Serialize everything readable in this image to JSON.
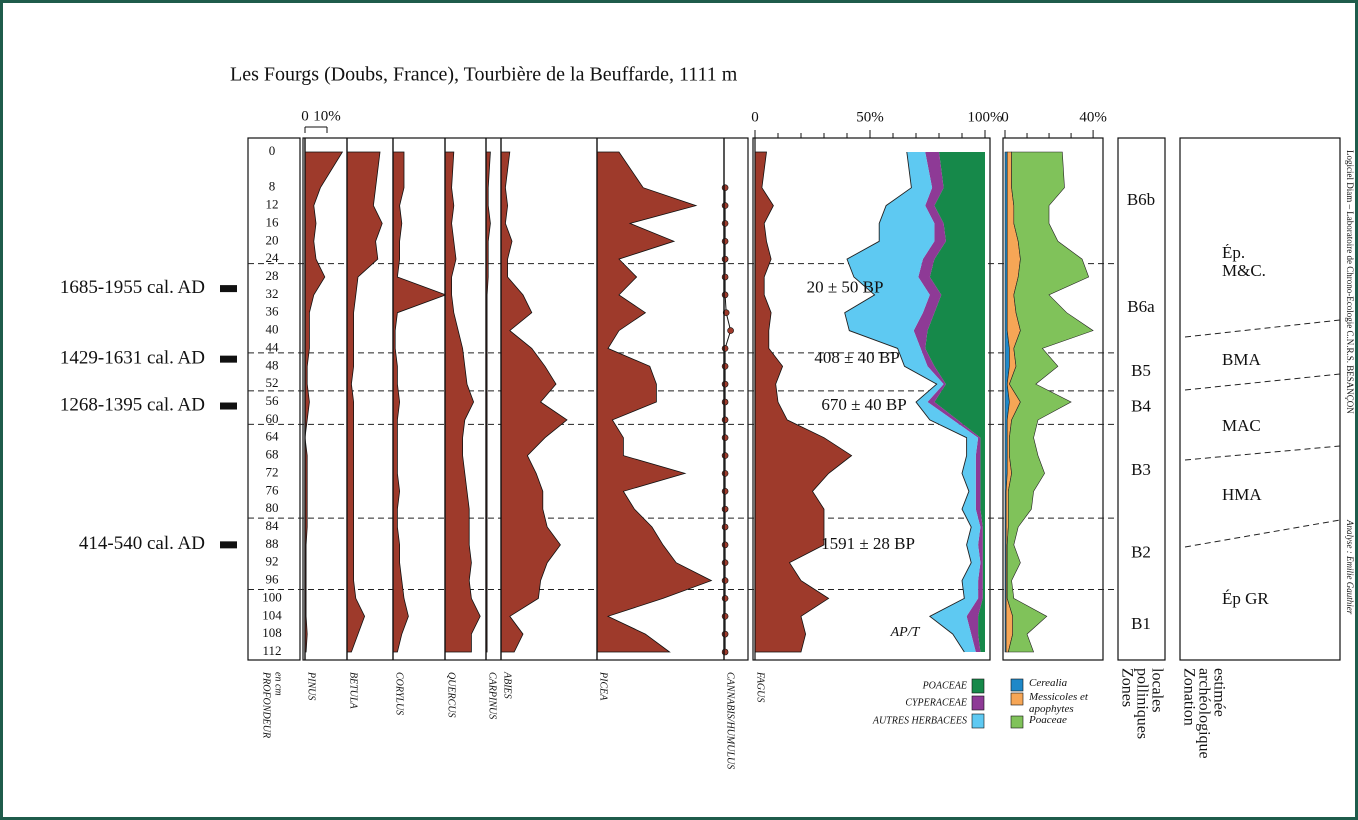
{
  "chart_data": {
    "type": "pollen-diagram",
    "title": "Les Fourgs (Doubs, France), Tourbière de la Beuffarde, 1111 m",
    "depth_label": "PROFONDEUR",
    "depth_unit": "en cm",
    "ylim": [
      -3,
      114
    ],
    "depths": [
      0,
      8,
      12,
      16,
      20,
      24,
      28,
      32,
      36,
      40,
      44,
      48,
      52,
      56,
      60,
      64,
      68,
      72,
      76,
      80,
      84,
      88,
      92,
      96,
      100,
      104,
      108,
      112
    ],
    "pollen_scale_ticks": [
      0,
      {
        "value": 10,
        "label": "10%"
      }
    ],
    "taxa": [
      {
        "name": "PINUS",
        "color": "#9e3a2b",
        "values": [
          17,
          7,
          4,
          5,
          4,
          5,
          9,
          4,
          2,
          2,
          2,
          1,
          1,
          2,
          1,
          0,
          1,
          1,
          1,
          1,
          1,
          0.5,
          0.5,
          0.5,
          0.5,
          0.5,
          1,
          0.5
        ]
      },
      {
        "name": "BETULA",
        "color": "#9e3a2b",
        "values": [
          15,
          13,
          12,
          16,
          13,
          14,
          5,
          4,
          3,
          3,
          3,
          3,
          2,
          3,
          3,
          3,
          3,
          3,
          3,
          3,
          3,
          3,
          3,
          3,
          4,
          8,
          5,
          2
        ]
      },
      {
        "name": "CORYLUS",
        "color": "#9e3a2b",
        "values": [
          5,
          5,
          3,
          4,
          3,
          3,
          2,
          24,
          2,
          1,
          1,
          2,
          2,
          3,
          2,
          2,
          2,
          2,
          3,
          2,
          2,
          3,
          3,
          4,
          5,
          7,
          4,
          2
        ]
      },
      {
        "name": "QUERCUS",
        "color": "#9e3a2b",
        "values": [
          4,
          3,
          4,
          3,
          4,
          5,
          3,
          3,
          4,
          6,
          8,
          9,
          10,
          13,
          9,
          8,
          8,
          9,
          10,
          11,
          11,
          11,
          12,
          11,
          12,
          16,
          12,
          12
        ]
      },
      {
        "name": "CARPINUS",
        "color": "#9e3a2b",
        "values": [
          2,
          1,
          1,
          2,
          1,
          1,
          1,
          0.5,
          0.5,
          0.5,
          0.5,
          0.5,
          0.5,
          0.5,
          0.5,
          0.5,
          0.5,
          0.5,
          0.5,
          0.5,
          0.5,
          0.5,
          0.5,
          0.5,
          0.5,
          0.5,
          0.5,
          0.5
        ]
      },
      {
        "name": "ABIES",
        "color": "#9e3a2b",
        "values": [
          4,
          2,
          3,
          2,
          5,
          3,
          3,
          10,
          14,
          4,
          14,
          20,
          25,
          18,
          30,
          20,
          12,
          16,
          19,
          19,
          21,
          27,
          21,
          18,
          17,
          4,
          10,
          6
        ]
      },
      {
        "name": "PICEA",
        "color": "#9e3a2b",
        "values": [
          10,
          21,
          45,
          15,
          35,
          10,
          18,
          10,
          22,
          10,
          5,
          24,
          27,
          27,
          7,
          12,
          12,
          40,
          12,
          17,
          25,
          30,
          36,
          52,
          30,
          5,
          22,
          33
        ]
      },
      {
        "name": "CANNABIS/HUMULUS",
        "color": "#9e3a2b",
        "style": "dots",
        "values": [
          null,
          0.5,
          0.5,
          0.5,
          0.5,
          0.5,
          0.5,
          0.5,
          1,
          3,
          0.5,
          0.5,
          0.5,
          0.5,
          0.5,
          0.5,
          0.5,
          0.5,
          0.5,
          0.5,
          0.5,
          0.5,
          0.5,
          0.5,
          0.5,
          0.5,
          0.5,
          0.5
        ]
      }
    ],
    "ap_panel": {
      "xlim": [
        0,
        100
      ],
      "xticks": [
        0,
        {
          "value": 50,
          "label": "50%"
        },
        {
          "value": 100,
          "label": "100%"
        }
      ],
      "xminor": [
        10,
        20,
        30,
        40,
        60,
        70,
        80,
        90
      ],
      "fagus": {
        "name": "FAGUS",
        "color": "#9e3a2b",
        "values": [
          5,
          3,
          8,
          4,
          5,
          7,
          4,
          4,
          7,
          6,
          6,
          12,
          9,
          10,
          14,
          30,
          42,
          32,
          25,
          30,
          30,
          30,
          15,
          20,
          32,
          20,
          22,
          20
        ]
      },
      "ap_label": "AP/T",
      "ap": [
        66,
        68,
        57,
        54,
        54,
        40,
        43,
        52,
        39,
        41,
        62,
        65,
        79,
        70,
        76,
        92,
        92,
        90,
        93,
        90,
        94,
        92,
        94,
        90,
        91,
        76,
        86,
        91
      ],
      "series": [
        {
          "name": "POACEAE",
          "color": "#16894a",
          "values": [
            20,
            18,
            22,
            18,
            17,
            22,
            24,
            19,
            22,
            25,
            26,
            22,
            17,
            22,
            12,
            2,
            2,
            2,
            2,
            2,
            1,
            1,
            1,
            1,
            1,
            3,
            3,
            2
          ]
        },
        {
          "name": "CYPERACEAE",
          "color": "#8e3a96",
          "values": [
            6,
            5,
            4,
            4,
            5,
            5,
            5,
            5,
            5,
            6,
            2,
            3,
            1,
            3,
            2,
            1,
            2,
            2,
            2,
            2,
            1,
            2,
            1,
            2,
            2,
            5,
            3,
            2
          ]
        },
        {
          "name": "AUTRES HERBACEES",
          "color": "#5ec9f2",
          "values": [
            8,
            9,
            17,
            24,
            24,
            33,
            28,
            24,
            34,
            28,
            10,
            10,
            3,
            5,
            10,
            5,
            4,
            6,
            3,
            6,
            4,
            5,
            4,
            7,
            6,
            16,
            8,
            5
          ]
        }
      ]
    },
    "herb_panel": {
      "xlim": [
        0,
        44.5
      ],
      "xticks": [
        0,
        {
          "value": 40,
          "label": "40%"
        }
      ],
      "xminor": [
        10,
        20,
        30
      ],
      "series": [
        {
          "name": "Cerealia",
          "color": "#1e88c8",
          "values": [
            1,
            1,
            1,
            1,
            1,
            1,
            1,
            1,
            1,
            1,
            2,
            2,
            1,
            2,
            1,
            1,
            1,
            1,
            0.5,
            0.5,
            0.5,
            0.5,
            0.5,
            0.5,
            0.5,
            0.5,
            0.5,
            0.5
          ]
        },
        {
          "name": "Messicoles et apophytes",
          "color": "#f6a656",
          "values": [
            2,
            2,
            3,
            3,
            5,
            6,
            5,
            3,
            4,
            6,
            2,
            3,
            1,
            5,
            2,
            1,
            1,
            2,
            1,
            1,
            1,
            0.5,
            0.5,
            0.5,
            0.5,
            3,
            3,
            1
          ]
        },
        {
          "name": "Poaceae",
          "color": "#80c25a",
          "values": [
            23,
            24,
            16,
            16,
            18,
            28,
            32,
            16,
            23,
            33,
            13,
            19,
            12,
            23,
            12,
            11,
            13,
            15,
            11.5,
            10.5,
            4.5,
            3,
            6,
            2,
            3,
            15.5,
            6.5,
            11.5
          ]
        }
      ]
    },
    "dates": [
      {
        "radiocarbon": "20 ± 50 BP",
        "calibrated": "1685-1955 cal. AD",
        "depth": 30.6
      },
      {
        "radiocarbon": "408 ± 40 BP",
        "calibrated": "1429-1631 cal. AD",
        "depth": 46.4
      },
      {
        "radiocarbon": "670 ± 40 BP",
        "calibrated": "1268-1395 cal. AD",
        "depth": 56.9
      },
      {
        "radiocarbon": "1591 ± 28 BP",
        "calibrated": "414-540 cal. AD",
        "depth": 88
      }
    ],
    "zones": {
      "title": [
        "Zones",
        "polliniques",
        "locales"
      ],
      "boundaries": [
        25,
        45,
        53.5,
        61,
        82,
        98
      ],
      "labels": [
        "B6b",
        "B6a",
        "B5",
        "B4",
        "B3",
        "B2",
        "B1"
      ]
    },
    "archaeology": {
      "title": [
        "Zonation",
        "archéologique",
        "estimée"
      ],
      "labels": [
        "Ép. M&C.",
        "BMA",
        "MAC",
        "HMA",
        "Ép GR"
      ]
    },
    "credits": [
      "Logiciel Diam – Laboratoire de Chrono-Ecologie C.N.R.S. BESANÇON",
      "Analyse : Emilie Gauthier"
    ]
  }
}
